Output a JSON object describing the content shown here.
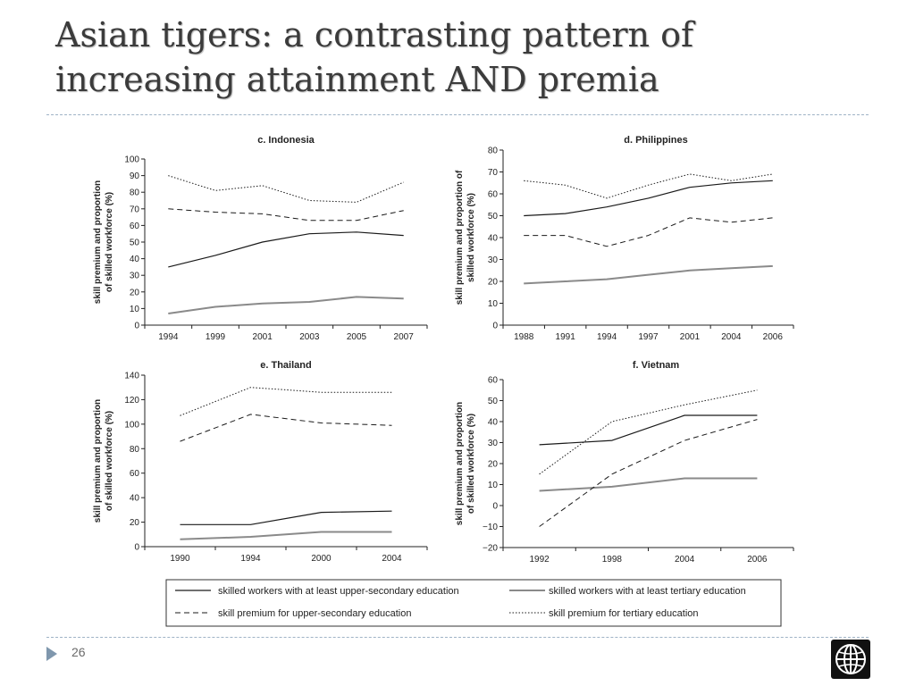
{
  "slide": {
    "title_line1": "Asian tigers: a contrasting pattern of",
    "title_line2": "increasing attainment AND premia",
    "page_number": "26",
    "logo_icon": "globe-icon"
  },
  "style": {
    "title_color": "#3b3b3b",
    "rule_color": "#9fb3c6",
    "accent_color": "#7f97ad",
    "series_colors": {
      "upper_secondary": "#1a1a1a",
      "tertiary": "#8a8a8a",
      "premium_upper_secondary": "#1a1a1a",
      "premium_tertiary": "#1a1a1a"
    }
  },
  "legend": {
    "upper_secondary": "skilled workers with at least upper-secondary education",
    "tertiary": "skilled workers with at least tertiary education",
    "premium_upper_secondary": "skill premium for upper-secondary education",
    "premium_tertiary": "skill premium for tertiary education"
  },
  "chart_data": [
    {
      "type": "line",
      "title": "c. Indonesia",
      "ylabel_line1": "skill premium and proportion",
      "ylabel_line2": "of skilled workforce (%)",
      "ylim": [
        0,
        100
      ],
      "yticks": [
        0,
        10,
        20,
        30,
        40,
        50,
        60,
        70,
        80,
        90,
        100
      ],
      "categories": [
        "1994",
        "1999",
        "2001",
        "2003",
        "2005",
        "2007"
      ],
      "series": [
        {
          "key": "upper_secondary",
          "name": "skilled workers with at least upper-secondary education",
          "values": [
            35,
            42,
            50,
            55,
            56,
            54
          ]
        },
        {
          "key": "tertiary",
          "name": "skilled workers with at least tertiary education",
          "values": [
            7,
            11,
            13,
            14,
            17,
            16
          ]
        },
        {
          "key": "premium_upper_secondary",
          "name": "skill premium for upper-secondary education",
          "values": [
            70,
            68,
            67,
            63,
            63,
            69
          ]
        },
        {
          "key": "premium_tertiary",
          "name": "skill premium for tertiary education",
          "values": [
            90,
            81,
            84,
            75,
            74,
            86
          ]
        }
      ]
    },
    {
      "type": "line",
      "title": "d. Philippines",
      "ylabel_line1": "skill premium and proportion of",
      "ylabel_line2": "skilled workforce (%)",
      "ylim": [
        0,
        80
      ],
      "yticks": [
        0,
        10,
        20,
        30,
        40,
        50,
        60,
        70,
        80
      ],
      "categories": [
        "1988",
        "1991",
        "1994",
        "1997",
        "2001",
        "2004",
        "2006"
      ],
      "series": [
        {
          "key": "upper_secondary",
          "name": "skilled workers with at least upper-secondary education",
          "values": [
            50,
            51,
            54,
            58,
            63,
            65,
            66
          ]
        },
        {
          "key": "tertiary",
          "name": "skilled workers with at least tertiary education",
          "values": [
            19,
            20,
            21,
            23,
            25,
            26,
            27
          ]
        },
        {
          "key": "premium_upper_secondary",
          "name": "skill premium for upper-secondary education",
          "values": [
            41,
            41,
            36,
            41,
            49,
            47,
            49
          ]
        },
        {
          "key": "premium_tertiary",
          "name": "skill premium for tertiary education",
          "values": [
            66,
            64,
            58,
            64,
            69,
            66,
            69
          ]
        }
      ]
    },
    {
      "type": "line",
      "title": "e. Thailand",
      "ylabel_line1": "skill premium and proportion",
      "ylabel_line2": "of skilled workforce (%)",
      "ylim": [
        0,
        140
      ],
      "yticks": [
        0,
        20,
        40,
        60,
        80,
        100,
        120,
        140
      ],
      "categories": [
        "1990",
        "1994",
        "2000",
        "2004"
      ],
      "series": [
        {
          "key": "upper_secondary",
          "name": "skilled workers with at least upper-secondary education",
          "values": [
            18,
            18,
            28,
            29
          ]
        },
        {
          "key": "tertiary",
          "name": "skilled workers with at least tertiary education",
          "values": [
            6,
            8,
            12,
            12
          ]
        },
        {
          "key": "premium_upper_secondary",
          "name": "skill premium for upper-secondary education",
          "values": [
            86,
            108,
            101,
            99
          ]
        },
        {
          "key": "premium_tertiary",
          "name": "skill premium for tertiary education",
          "values": [
            107,
            130,
            126,
            126
          ]
        }
      ]
    },
    {
      "type": "line",
      "title": "f. Vietnam",
      "ylabel_line1": "skill premium and proportion",
      "ylabel_line2": "of skilled workforce (%)",
      "ylim": [
        -20,
        60
      ],
      "yticks": [
        -20,
        -10,
        0,
        10,
        20,
        30,
        40,
        50,
        60
      ],
      "categories": [
        "1992",
        "1998",
        "2004",
        "2006"
      ],
      "series": [
        {
          "key": "upper_secondary",
          "name": "skilled workers with at least upper-secondary education",
          "values": [
            29,
            31,
            43,
            43
          ]
        },
        {
          "key": "tertiary",
          "name": "skilled workers with at least tertiary education",
          "values": [
            7,
            9,
            13,
            13
          ]
        },
        {
          "key": "premium_upper_secondary",
          "name": "skill premium for upper-secondary education",
          "values": [
            -10,
            15,
            31,
            41
          ]
        },
        {
          "key": "premium_tertiary",
          "name": "skill premium for tertiary education",
          "values": [
            15,
            40,
            48,
            55
          ]
        }
      ]
    }
  ]
}
